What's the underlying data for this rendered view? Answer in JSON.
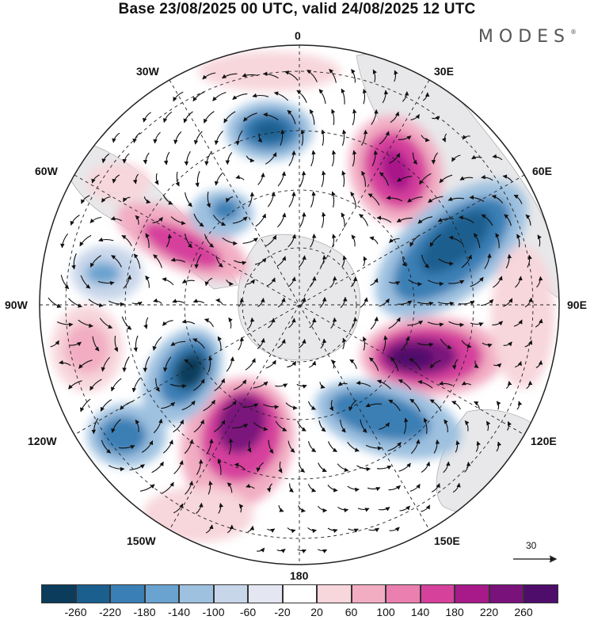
{
  "title": "Base 23/08/2025 00 UTC, valid 24/08/2025 12 UTC",
  "brand": {
    "name": "MODES",
    "mark": "®"
  },
  "longitude_labels": {
    "lon_0": "0",
    "lon_30e": "30E",
    "lon_60e": "60E",
    "lon_90e": "90E",
    "lon_120e": "120E",
    "lon_150e": "150E",
    "lon_180": "180",
    "lon_150w": "150W",
    "lon_120w": "120W",
    "lon_90w": "90W",
    "lon_60w": "60W",
    "lon_30w": "30W"
  },
  "reference_vector": {
    "value": "30"
  },
  "colorbar": {
    "colors": [
      "#0b3c5c",
      "#1b5f8f",
      "#3a7fb5",
      "#6aa3cf",
      "#9ec1e0",
      "#c8d6ea",
      "#e4e6f2",
      "#ffffff",
      "#f7d6dc",
      "#f2adc3",
      "#ea7fb0",
      "#d6419c",
      "#a8198a",
      "#7a127c",
      "#4e0d6a"
    ],
    "tick_labels": [
      "-260",
      "-220",
      "-180",
      "-140",
      "-100",
      "-60",
      "-20",
      "20",
      "60",
      "100",
      "140",
      "180",
      "220",
      "260"
    ]
  }
}
